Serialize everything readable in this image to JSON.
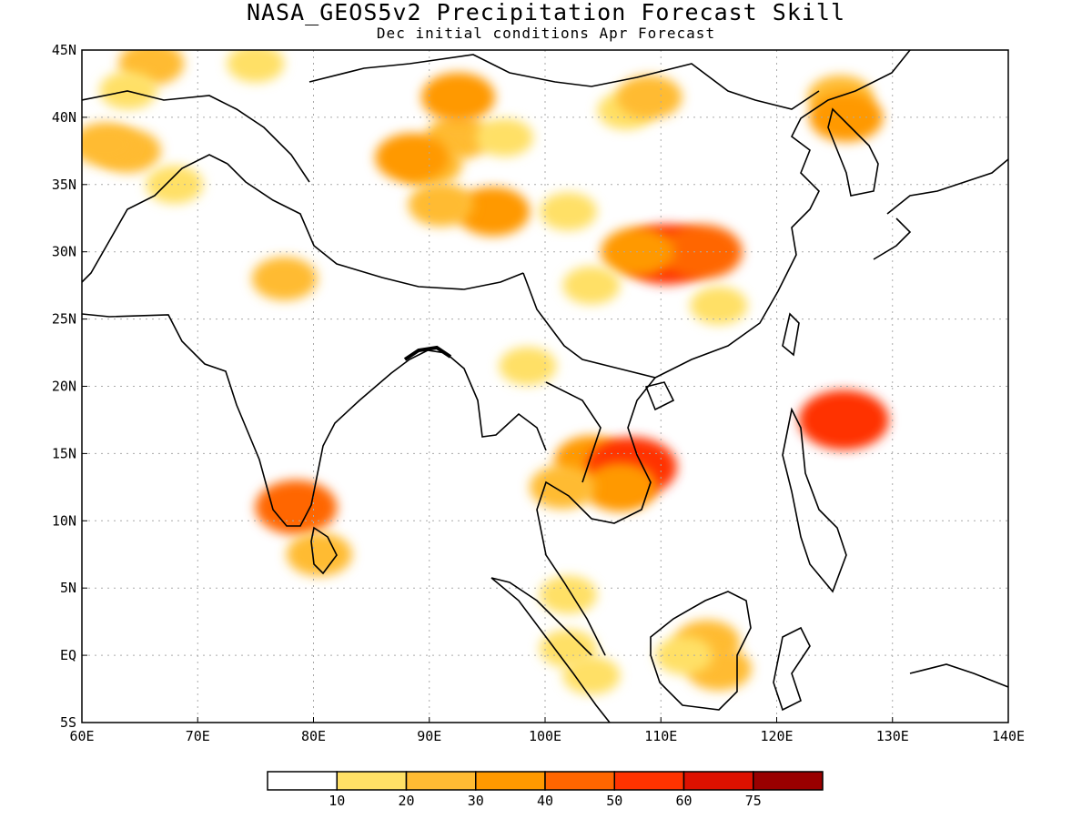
{
  "title": "NASA_GEOS5v2 Precipitation Forecast Skill",
  "subtitle": "Dec initial conditions  Apr Forecast",
  "lon_ticks": [
    "60E",
    "70E",
    "80E",
    "90E",
    "100E",
    "110E",
    "120E",
    "130E",
    "140E"
  ],
  "lat_ticks": [
    "45N",
    "40N",
    "35N",
    "30N",
    "25N",
    "20N",
    "15N",
    "10N",
    "5N",
    "EQ",
    "5S"
  ],
  "colorbar": {
    "colors": [
      "#ffffff",
      "#ffe066",
      "#ffbb33",
      "#ff9900",
      "#ff6600",
      "#ff3300",
      "#dd1100",
      "#990000"
    ],
    "labels": [
      "10",
      "20",
      "30",
      "40",
      "50",
      "60",
      "75"
    ]
  },
  "skill_patches": [
    {
      "lon": 92.5,
      "lat": 38.5,
      "level": 2
    },
    {
      "lon": 90.0,
      "lat": 36.5,
      "level": 2
    },
    {
      "lon": 88.5,
      "lat": 37.0,
      "level": 3
    },
    {
      "lon": 92.5,
      "lat": 41.5,
      "level": 3
    },
    {
      "lon": 95.5,
      "lat": 33.0,
      "level": 3
    },
    {
      "lon": 91.0,
      "lat": 33.5,
      "level": 2
    },
    {
      "lon": 96.5,
      "lat": 38.5,
      "level": 1
    },
    {
      "lon": 102.0,
      "lat": 33.0,
      "level": 1
    },
    {
      "lon": 107.0,
      "lat": 40.5,
      "level": 1
    },
    {
      "lon": 109.0,
      "lat": 41.5,
      "level": 2
    },
    {
      "lon": 125.5,
      "lat": 41.5,
      "level": 2
    },
    {
      "lon": 126.0,
      "lat": 40.0,
      "level": 3
    },
    {
      "lon": 110.5,
      "lat": 29.8,
      "level": 5
    },
    {
      "lon": 113.5,
      "lat": 30.0,
      "level": 4
    },
    {
      "lon": 108.0,
      "lat": 30.0,
      "level": 3
    },
    {
      "lon": 115.0,
      "lat": 26.0,
      "level": 1
    },
    {
      "lon": 104.0,
      "lat": 27.5,
      "level": 1
    },
    {
      "lon": 64.0,
      "lat": 37.5,
      "level": 2
    },
    {
      "lon": 62.0,
      "lat": 38.0,
      "level": 2
    },
    {
      "lon": 66.0,
      "lat": 44.0,
      "level": 2
    },
    {
      "lon": 64.0,
      "lat": 42.0,
      "level": 1
    },
    {
      "lon": 77.5,
      "lat": 28.0,
      "level": 2
    },
    {
      "lon": 75.0,
      "lat": 44.0,
      "level": 1
    },
    {
      "lon": 68.0,
      "lat": 35.0,
      "level": 1
    },
    {
      "lon": 78.5,
      "lat": 11.0,
      "level": 4
    },
    {
      "lon": 80.5,
      "lat": 7.5,
      "level": 2
    },
    {
      "lon": 104.0,
      "lat": 14.5,
      "level": 3
    },
    {
      "lon": 107.5,
      "lat": 14.0,
      "level": 5
    },
    {
      "lon": 106.5,
      "lat": 12.5,
      "level": 3
    },
    {
      "lon": 101.5,
      "lat": 12.5,
      "level": 2
    },
    {
      "lon": 125.8,
      "lat": 17.5,
      "level": 5
    },
    {
      "lon": 114.0,
      "lat": 1.0,
      "level": 2
    },
    {
      "lon": 115.0,
      "lat": -1.0,
      "level": 2
    },
    {
      "lon": 112.0,
      "lat": 0.0,
      "level": 1
    },
    {
      "lon": 102.0,
      "lat": 0.5,
      "level": 1
    },
    {
      "lon": 104.0,
      "lat": -1.5,
      "level": 1
    },
    {
      "lon": 102.0,
      "lat": 4.5,
      "level": 1
    },
    {
      "lon": 98.5,
      "lat": 21.5,
      "level": 1
    }
  ]
}
